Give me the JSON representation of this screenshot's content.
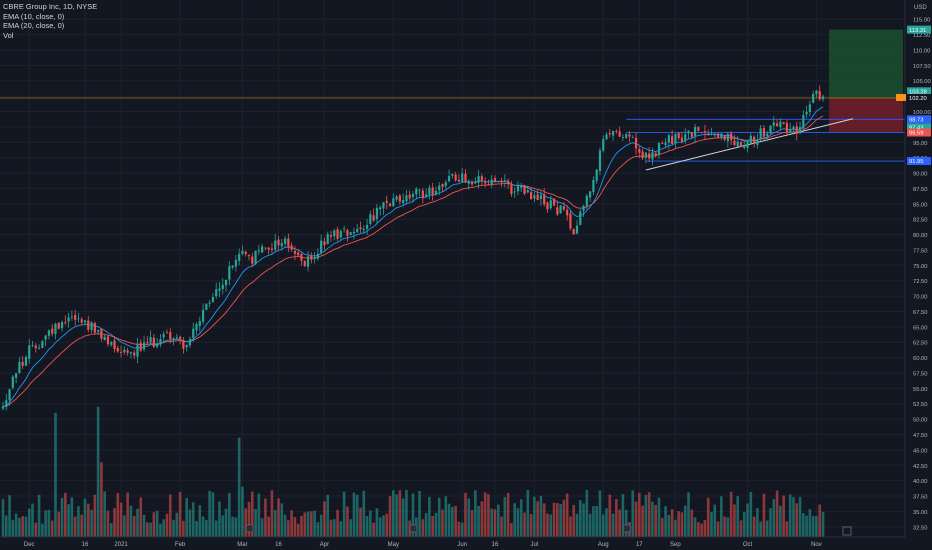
{
  "window": {
    "currency_label": "USD"
  },
  "legend": {
    "symbol": "CBRE Group Inc, 1D, NYSE",
    "ema10": "EMA (10, close, 0)",
    "ema20": "EMA (20, close, 0)",
    "vol": "Vol"
  },
  "colors": {
    "background": "#131722",
    "up_candle": "#26a69a",
    "down_candle": "#ef5350",
    "ema10": "#2196f3",
    "ema20": "#ef5350",
    "target_zone": "#1b4d2e",
    "stop_zone": "#6b1e2a",
    "hline": "#2962ff",
    "trendline": "#d1d4dc"
  },
  "chart_data": {
    "type": "candlestick",
    "symbol": "CBRE",
    "timeframe": "1D",
    "exchange": "NYSE",
    "y_axis": {
      "min": 31,
      "max": 116.5,
      "ticks": [
        32.5,
        35,
        37.5,
        40,
        42.5,
        45,
        47.5,
        50,
        52.5,
        55,
        57.5,
        60,
        62.5,
        65,
        67.5,
        70,
        72.5,
        75,
        77.5,
        80,
        82.5,
        85,
        87.5,
        90,
        92.5,
        95,
        97.5,
        100,
        102.5,
        105,
        107.5,
        110,
        112.5,
        115
      ],
      "tick_labels": [
        "32.50",
        "35.00",
        "37.50",
        "40.00",
        "42.50",
        "45.00",
        "47.50",
        "50.00",
        "52.50",
        "55.00",
        "57.50",
        "60.00",
        "62.50",
        "65.00",
        "67.50",
        "70.00",
        "72.50",
        "75.00",
        "77.50",
        "80.00",
        "82.50",
        "85.00",
        "87.50",
        "90.00",
        "92.50",
        "95.00",
        "97.50",
        "100.00",
        "102.50",
        "105.00",
        "107.50",
        "110.00",
        "112.50",
        "115.00"
      ]
    },
    "x_axis": {
      "labels": [
        "Dec",
        "16",
        "2021",
        "Feb",
        "Mar",
        "16",
        "Apr",
        "May",
        "Jun",
        "16",
        "Jul",
        "Aug",
        "17",
        "Sep",
        "Oct",
        "Nov"
      ],
      "label_bar_index": [
        8,
        25,
        36,
        54,
        73,
        84,
        98,
        119,
        140,
        150,
        162,
        183,
        194,
        205,
        227,
        248
      ]
    },
    "price_tags": [
      {
        "label": "113.31",
        "value": 113.31,
        "color": "#26a69a"
      },
      {
        "label": "103.28",
        "value": 103.28,
        "color": "#26a69a"
      },
      {
        "label": "102.20",
        "value": 102.2,
        "color": "#131722"
      },
      {
        "label": "98.73",
        "value": 98.73,
        "color": "#2962ff"
      },
      {
        "label": "97.43",
        "value": 97.43,
        "color": "#26a69a"
      },
      {
        "label": "96.59",
        "value": 96.59,
        "color": "#ef5350"
      },
      {
        "label": "91.95",
        "value": 91.95,
        "color": "#2962ff"
      }
    ],
    "horizontal_lines": [
      98.73,
      96.59,
      91.95
    ],
    "orange_level": 102.2,
    "trendline": {
      "from": {
        "bar": 196,
        "value": 90.5
      },
      "to": {
        "bar": 250,
        "value": 98.9
      }
    },
    "position": {
      "entry": 102.2,
      "target": 113.31,
      "stop": 96.59
    },
    "path": [
      {
        "i": 0,
        "v": 52
      },
      {
        "i": 3,
        "v": 57
      },
      {
        "i": 8,
        "v": 61
      },
      {
        "i": 14,
        "v": 64
      },
      {
        "i": 20,
        "v": 67
      },
      {
        "i": 26,
        "v": 65.5
      },
      {
        "i": 30,
        "v": 63
      },
      {
        "i": 38,
        "v": 61
      },
      {
        "i": 44,
        "v": 62
      },
      {
        "i": 50,
        "v": 64
      },
      {
        "i": 56,
        "v": 62
      },
      {
        "i": 62,
        "v": 68
      },
      {
        "i": 68,
        "v": 73
      },
      {
        "i": 72,
        "v": 77
      },
      {
        "i": 76,
        "v": 76
      },
      {
        "i": 80,
        "v": 78
      },
      {
        "i": 86,
        "v": 79
      },
      {
        "i": 92,
        "v": 75
      },
      {
        "i": 100,
        "v": 80
      },
      {
        "i": 108,
        "v": 81
      },
      {
        "i": 115,
        "v": 84
      },
      {
        "i": 122,
        "v": 86
      },
      {
        "i": 130,
        "v": 87
      },
      {
        "i": 136,
        "v": 89
      },
      {
        "i": 140,
        "v": 89.5
      },
      {
        "i": 146,
        "v": 88.5
      },
      {
        "i": 152,
        "v": 88
      },
      {
        "i": 158,
        "v": 87
      },
      {
        "i": 164,
        "v": 85.5
      },
      {
        "i": 170,
        "v": 84
      },
      {
        "i": 174,
        "v": 81
      },
      {
        "i": 177,
        "v": 85
      },
      {
        "i": 180,
        "v": 89
      },
      {
        "i": 183,
        "v": 95
      },
      {
        "i": 187,
        "v": 97
      },
      {
        "i": 191,
        "v": 96
      },
      {
        "i": 195,
        "v": 92
      },
      {
        "i": 198,
        "v": 93
      },
      {
        "i": 202,
        "v": 95
      },
      {
        "i": 208,
        "v": 96
      },
      {
        "i": 214,
        "v": 97
      },
      {
        "i": 220,
        "v": 96
      },
      {
        "i": 224,
        "v": 95
      },
      {
        "i": 230,
        "v": 96
      },
      {
        "i": 236,
        "v": 98
      },
      {
        "i": 242,
        "v": 97
      },
      {
        "i": 247,
        "v": 102
      },
      {
        "i": 250,
        "v": 103.3
      }
    ],
    "bars_total": 251,
    "volume_spikes": [
      {
        "i": 16,
        "v": 51
      },
      {
        "i": 29,
        "v": 52
      },
      {
        "i": 30,
        "v": 43
      },
      {
        "i": 72,
        "v": 47
      },
      {
        "i": 73,
        "v": 39
      },
      {
        "i": 0,
        "v": 37
      },
      {
        "i": 35,
        "v": 38
      },
      {
        "i": 154,
        "v": 38
      }
    ]
  }
}
